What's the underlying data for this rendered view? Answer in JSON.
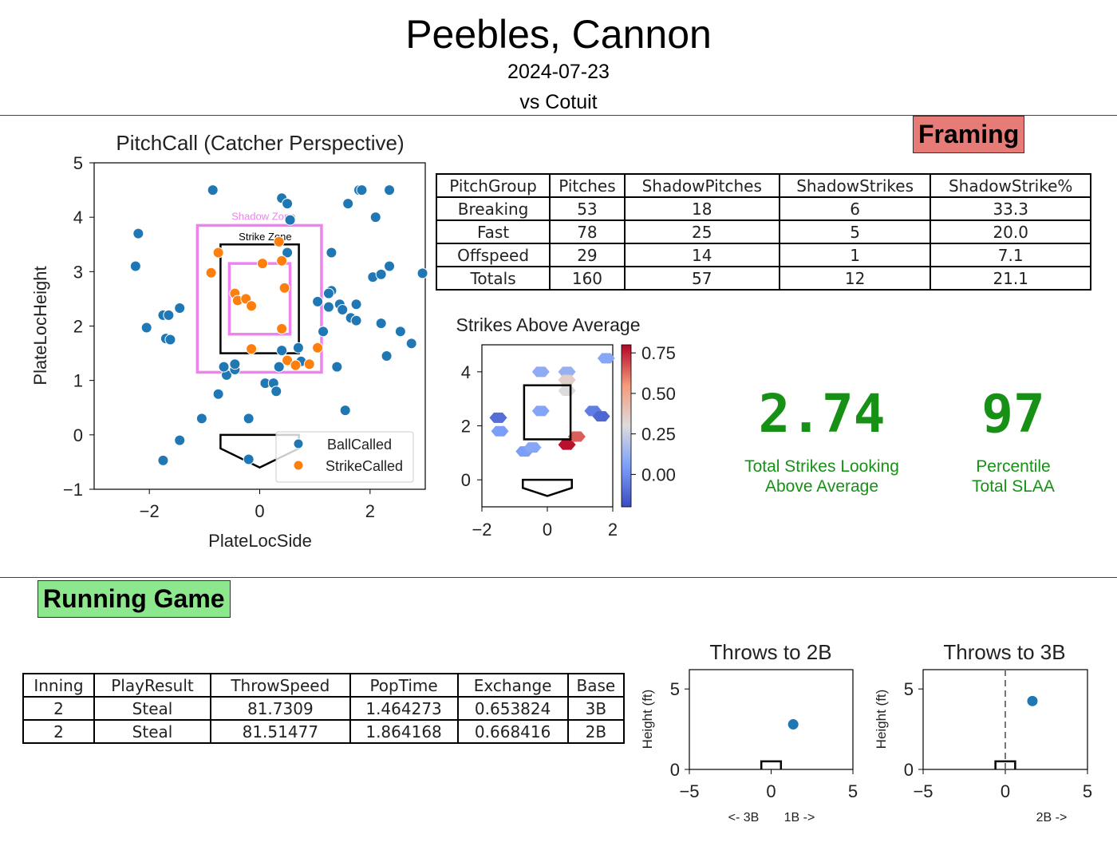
{
  "header": {
    "name": "Peebles, Cannon",
    "date": "2024-07-23",
    "opponent": "vs Cotuit"
  },
  "sections": {
    "framing": "Framing",
    "running": "Running Game"
  },
  "framing_table": {
    "columns": [
      "PitchGroup",
      "Pitches",
      "ShadowPitches",
      "ShadowStrikes",
      "ShadowStrike%"
    ],
    "rows": [
      [
        "Breaking",
        "53",
        "18",
        "6",
        "33.3"
      ],
      [
        "Fast",
        "78",
        "25",
        "5",
        "20.0"
      ],
      [
        "Offspeed",
        "29",
        "14",
        "1",
        "7.1"
      ],
      [
        "Totals",
        "160",
        "57",
        "12",
        "21.1"
      ]
    ]
  },
  "kpis": {
    "slaa_value": "2.74",
    "slaa_caption_1": "Total Strikes Looking",
    "slaa_caption_2": "Above Average",
    "pct_value": "97",
    "pct_caption_1": "Percentile",
    "pct_caption_2": "Total SLAA"
  },
  "running_table": {
    "columns": [
      "Inning",
      "PlayResult",
      "ThrowSpeed",
      "PopTime",
      "Exchange",
      "Base"
    ],
    "rows": [
      [
        "2",
        "Steal",
        "81.7309",
        "1.464273",
        "0.653824",
        "3B"
      ],
      [
        "2",
        "Steal",
        "81.51477",
        "1.864168",
        "0.668416",
        "2B"
      ]
    ]
  },
  "chart_data": [
    {
      "type": "scatter",
      "title": "PitchCall (Catcher Perspective)",
      "xlabel": "PlateLocSide",
      "ylabel": "PlateLocHeight",
      "xlim": [
        -3,
        3
      ],
      "ylim": [
        -1,
        5
      ],
      "xticks": [
        -2,
        0,
        2
      ],
      "yticks": [
        -1,
        0,
        1,
        2,
        3,
        4,
        5
      ],
      "zone_labels": {
        "shadow": "Shadow Zone",
        "strike": "Strike Zone"
      },
      "legend_position": "lower-right",
      "series": [
        {
          "name": "BallCalled",
          "color": "#1f77b4",
          "points": [
            [
              -0.85,
              4.5
            ],
            [
              -2.2,
              3.7
            ],
            [
              -2.25,
              3.1
            ],
            [
              -2.05,
              1.97
            ],
            [
              -1.75,
              2.2
            ],
            [
              -1.7,
              1.77
            ],
            [
              -1.62,
              1.75
            ],
            [
              -1.45,
              2.33
            ],
            [
              -1.65,
              2.2
            ],
            [
              -1.75,
              -0.47
            ],
            [
              -1.45,
              -0.1
            ],
            [
              -1.05,
              0.3
            ],
            [
              -0.75,
              0.75
            ],
            [
              -0.6,
              1.1
            ],
            [
              -0.65,
              1.25
            ],
            [
              -0.45,
              1.2
            ],
            [
              -0.45,
              1.3
            ],
            [
              -0.2,
              0.3
            ],
            [
              0.1,
              0.95
            ],
            [
              -0.2,
              -0.45
            ],
            [
              0.25,
              0.95
            ],
            [
              0.3,
              0.8
            ],
            [
              0.35,
              1.25
            ],
            [
              0.4,
              1.55
            ],
            [
              0.4,
              4.35
            ],
            [
              0.5,
              4.25
            ],
            [
              0.5,
              3.35
            ],
            [
              0.55,
              3.95
            ],
            [
              0.7,
              1.6
            ],
            [
              0.75,
              1.35
            ],
            [
              1.15,
              1.9
            ],
            [
              1.05,
              2.45
            ],
            [
              1.3,
              2.65
            ],
            [
              1.3,
              3.35
            ],
            [
              1.25,
              2.6
            ],
            [
              1.25,
              2.35
            ],
            [
              1.4,
              1.25
            ],
            [
              1.45,
              2.4
            ],
            [
              1.5,
              2.3
            ],
            [
              1.55,
              0.45
            ],
            [
              1.6,
              4.25
            ],
            [
              1.65,
              2.15
            ],
            [
              1.75,
              2.1
            ],
            [
              1.75,
              2.4
            ],
            [
              1.8,
              4.5
            ],
            [
              1.85,
              4.5
            ],
            [
              2.1,
              4.0
            ],
            [
              2.05,
              2.9
            ],
            [
              2.2,
              2.95
            ],
            [
              2.2,
              2.05
            ],
            [
              2.3,
              1.45
            ],
            [
              2.35,
              4.5
            ],
            [
              2.35,
              3.1
            ],
            [
              2.55,
              1.9
            ],
            [
              2.75,
              1.68
            ],
            [
              2.95,
              2.97
            ]
          ]
        },
        {
          "name": "StrikeCalled",
          "color": "#ff7f0e",
          "points": [
            [
              -0.88,
              2.98
            ],
            [
              -0.75,
              3.35
            ],
            [
              -0.45,
              2.6
            ],
            [
              -0.4,
              2.47
            ],
            [
              -0.25,
              2.5
            ],
            [
              -0.15,
              2.37
            ],
            [
              -0.15,
              1.58
            ],
            [
              0.05,
              3.15
            ],
            [
              0.35,
              3.55
            ],
            [
              0.4,
              3.2
            ],
            [
              0.45,
              2.7
            ],
            [
              0.4,
              1.95
            ],
            [
              0.5,
              1.37
            ],
            [
              0.65,
              1.28
            ],
            [
              1.05,
              1.6
            ],
            [
              0.9,
              1.3
            ]
          ]
        }
      ]
    },
    {
      "type": "heatmap",
      "title": "Strikes Above Average",
      "xlim": [
        -2,
        2
      ],
      "ylim": [
        -1,
        5
      ],
      "xticks": [
        -2,
        0,
        2
      ],
      "yticks": [
        0,
        2,
        4
      ],
      "colorbar": {
        "min": -0.2,
        "max": 0.8,
        "ticks": [
          0.0,
          0.25,
          0.5,
          0.75
        ],
        "scale": "coolwarm"
      },
      "cells": [
        {
          "x": -1.5,
          "y": 2.3,
          "value": -0.1
        },
        {
          "x": -1.45,
          "y": 1.8,
          "value": 0.05
        },
        {
          "x": -0.7,
          "y": 1.05,
          "value": 0.05
        },
        {
          "x": -0.45,
          "y": 1.2,
          "value": 0.08
        },
        {
          "x": -0.2,
          "y": 4.0,
          "value": 0.1
        },
        {
          "x": -0.2,
          "y": 2.55,
          "value": 0.07
        },
        {
          "x": 0.6,
          "y": 4.0,
          "value": 0.12
        },
        {
          "x": 0.6,
          "y": 3.7,
          "value": 0.35
        },
        {
          "x": 0.6,
          "y": 3.3,
          "value": 0.3
        },
        {
          "x": 0.6,
          "y": 1.3,
          "value": 0.78
        },
        {
          "x": 0.9,
          "y": 1.6,
          "value": 0.65
        },
        {
          "x": 1.4,
          "y": 2.55,
          "value": -0.05
        },
        {
          "x": 1.65,
          "y": 2.35,
          "value": -0.12
        },
        {
          "x": 1.8,
          "y": 4.5,
          "value": 0.08
        }
      ]
    },
    {
      "type": "scatter",
      "title": "Throws to 2B",
      "ylabel": "Height (ft)",
      "xlabel_left": "<- 3B",
      "xlabel_right": "1B ->",
      "xlim": [
        -5,
        5
      ],
      "ylim": [
        0,
        6.2
      ],
      "xticks": [
        -5,
        0,
        5
      ],
      "yticks": [
        0,
        5
      ],
      "points": [
        [
          1.35,
          2.8
        ]
      ]
    },
    {
      "type": "scatter",
      "title": "Throws to 3B",
      "ylabel": "Height (ft)",
      "xlabel_right": "2B ->",
      "xlim": [
        -5,
        5
      ],
      "ylim": [
        0,
        6.2
      ],
      "xticks": [
        -5,
        0,
        5
      ],
      "yticks": [
        0,
        5
      ],
      "points": [
        [
          1.65,
          4.25
        ]
      ]
    }
  ]
}
